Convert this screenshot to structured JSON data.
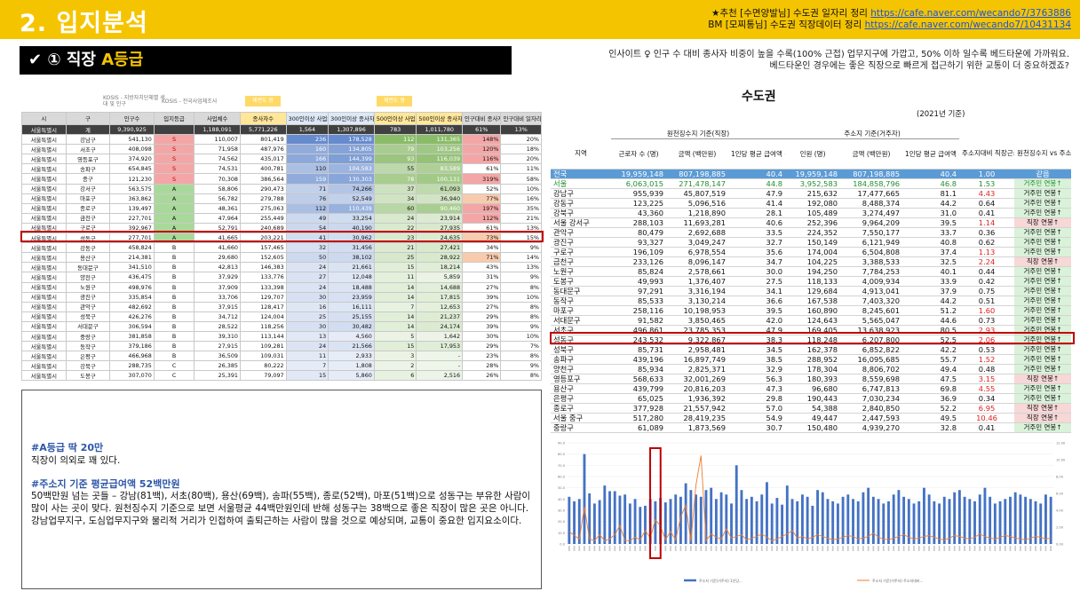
{
  "header": {
    "title": "2. 입지분석",
    "ref1_text": "★추천 [수면양발님] 수도권 일자리 정리 ",
    "ref1_link": "https://cafe.naver.com/wecando7/3763886",
    "ref2_text": "BM [모찌통님] 수도권 직장데이터 정리 ",
    "ref2_link": "https://cafe.naver.com/wecando7/10431134"
  },
  "subtitle": {
    "prefix": "✔ ① 직장 ",
    "grade": "A등급"
  },
  "insight": {
    "line1": "인사이트 ♀  인구 수 대비 종사자 비중이 높을 수록(100% 근접) 업무지구에 가깝고, 50% 이하 일수록 베드타운에 가까워요.",
    "line2": "베드타운인 경우에는 좋은 직장으로 빠르게 접근하기 위한 교통이 더 중요하겠죠?"
  },
  "left_table": {
    "notes": [
      "KOSIS - 지방자치단체별 세대 및 인구",
      "KOSIS - 전국사업체조사"
    ],
    "tags": [
      "제변도 왕",
      "제변도 왕"
    ],
    "headers": [
      "시",
      "구",
      "인구수",
      "입지등급",
      "사업체수",
      "종사자수",
      "300인이상 사업체수",
      "300인이상 종사자수",
      "500인이상 사업체수",
      "500인이상 종사자수",
      "인구대비 종사자 비율",
      "인구대비 일자리 비율"
    ],
    "total": [
      "서울특별시",
      "계",
      "9,390,925",
      "",
      "1,188,091",
      "5,771,226",
      "1,564",
      "1,307,896",
      "783",
      "1,011,780",
      "61%",
      "13%"
    ],
    "rows": [
      [
        "서울특별시",
        "강남구",
        "541,130",
        "S",
        "110,007",
        "801,419",
        "236",
        "178,528",
        "112",
        "131,365",
        "148%",
        "20%"
      ],
      [
        "서울특별시",
        "서초구",
        "408,098",
        "S",
        "71,958",
        "487,976",
        "160",
        "134,805",
        "79",
        "103,256",
        "120%",
        "18%"
      ],
      [
        "서울특별시",
        "영등포구",
        "374,920",
        "S",
        "74,562",
        "435,017",
        "166",
        "144,399",
        "93",
        "116,039",
        "116%",
        "20%"
      ],
      [
        "서울특별시",
        "송파구",
        "654,845",
        "S",
        "74,531",
        "400,781",
        "110",
        "104,583",
        "55",
        "83,589",
        "61%",
        "11%"
      ],
      [
        "서울특별시",
        "종구",
        "121,230",
        "S",
        "70,308",
        "386,564",
        "159",
        "130,303",
        "78",
        "100,131",
        "319%",
        "58%"
      ],
      [
        "서울특별시",
        "강서구",
        "563,575",
        "A",
        "58,806",
        "290,473",
        "71",
        "74,266",
        "37",
        "61,093",
        "52%",
        "10%"
      ],
      [
        "서울특별시",
        "마포구",
        "363,862",
        "A",
        "56,782",
        "279,788",
        "76",
        "52,549",
        "34",
        "36,940",
        "77%",
        "16%"
      ],
      [
        "서울특별시",
        "종로구",
        "139,497",
        "A",
        "48,361",
        "275,063",
        "112",
        "110,439",
        "60",
        "90,460",
        "197%",
        "35%"
      ],
      [
        "서울특별시",
        "금천구",
        "227,701",
        "A",
        "47,964",
        "255,449",
        "49",
        "33,254",
        "24",
        "23,914",
        "112%",
        "21%"
      ],
      [
        "서울특별시",
        "구로구",
        "392,967",
        "A",
        "52,791",
        "240,689",
        "54",
        "40,190",
        "22",
        "27,935",
        "61%",
        "13%"
      ],
      [
        "서울특별시",
        "성동구",
        "277,701",
        "A",
        "41,665",
        "203,221",
        "41",
        "30,962",
        "23",
        "24,635",
        "73%",
        "15%"
      ],
      [
        "서울특별시",
        "강동구",
        "458,824",
        "B",
        "41,660",
        "157,465",
        "32",
        "31,456",
        "21",
        "27,421",
        "34%",
        "9%"
      ],
      [
        "서울특별시",
        "용산구",
        "214,381",
        "B",
        "29,680",
        "152,605",
        "50",
        "38,102",
        "25",
        "28,922",
        "71%",
        "14%"
      ],
      [
        "서울특별시",
        "동대문구",
        "341,510",
        "B",
        "42,813",
        "146,383",
        "24",
        "21,661",
        "15",
        "18,214",
        "43%",
        "13%"
      ],
      [
        "서울특별시",
        "양천구",
        "436,475",
        "B",
        "37,929",
        "133,776",
        "27",
        "12,048",
        "11",
        "5,859",
        "31%",
        "9%"
      ],
      [
        "서울특별시",
        "노원구",
        "498,976",
        "B",
        "37,909",
        "133,398",
        "24",
        "18,488",
        "14",
        "14,688",
        "27%",
        "8%"
      ],
      [
        "서울특별시",
        "광진구",
        "335,854",
        "B",
        "33,706",
        "129,707",
        "30",
        "23,959",
        "14",
        "17,815",
        "39%",
        "10%"
      ],
      [
        "서울특별시",
        "관악구",
        "482,692",
        "B",
        "37,915",
        "128,417",
        "16",
        "16,111",
        "7",
        "12,653",
        "27%",
        "8%"
      ],
      [
        "서울특별시",
        "성북구",
        "426,276",
        "B",
        "34,712",
        "124,004",
        "25",
        "25,155",
        "14",
        "21,237",
        "29%",
        "8%"
      ],
      [
        "서울특별시",
        "서대문구",
        "306,594",
        "B",
        "28,522",
        "118,256",
        "30",
        "30,482",
        "14",
        "24,174",
        "39%",
        "9%"
      ],
      [
        "서울특별시",
        "중랑구",
        "381,858",
        "B",
        "39,310",
        "113,144",
        "13",
        "4,560",
        "5",
        "1,642",
        "30%",
        "10%"
      ],
      [
        "서울특별시",
        "동작구",
        "379,186",
        "B",
        "27,915",
        "109,281",
        "24",
        "21,566",
        "15",
        "17,953",
        "29%",
        "7%"
      ],
      [
        "서울특별시",
        "은평구",
        "466,968",
        "B",
        "36,509",
        "109,031",
        "11",
        "2,933",
        "3",
        "-",
        "23%",
        "8%"
      ],
      [
        "서울특별시",
        "강북구",
        "288,735",
        "C",
        "26,385",
        "80,222",
        "7",
        "1,808",
        "2",
        "-",
        "28%",
        "9%"
      ],
      [
        "서울특별시",
        "도봉구",
        "307,070",
        "C",
        "25,391",
        "79,097",
        "15",
        "5,860",
        "6",
        "2,516",
        "26%",
        "8%"
      ]
    ]
  },
  "text_box": {
    "h1": "#A등급 딱 20만",
    "p1": "직장이 의외로 꽤 있다.",
    "h2": "#주소지 기준 평균급여액 52백만원",
    "p2": "50백만원 넘는 곳들 – 강남(81백), 서초(80백), 용산(69백), 송파(55백), 종로(52백), 마포(51백)으로 성동구는 부유한 사람이 많이 사는 곳이 맞다. 원천징수지 기준으로 보면 서울평균 44백만원인데 반해 성동구는 38백으로 좋은 직장이 많은 곳은 아니다. 강남업무지구, 도심업무지구와 물리적 거리가 인접하여 출퇴근하는 사람이 많을 것으로 예상되며, 교통이 중요한 입지요소이다."
  },
  "right_table": {
    "title": "수도권",
    "year": "(2021년 기준)",
    "group1": "원천징수지 기준(직장)",
    "group2": "주소지 기준(거주자)",
    "headers": [
      "지역",
      "근로자 수 (명)",
      "금액 (백만원)",
      "1인당 평균 급여액 (백만원)",
      "인원 (명)",
      "금액 (백만원)",
      "1인당 평균 급여액 (백만원)",
      "주소지대비 직장근로자수",
      "원천징수지 vs 주소지"
    ],
    "rows": [
      [
        "전국",
        "19,959,148",
        "807,198,885",
        "40.4",
        "19,959,148",
        "807,198,885",
        "40.4",
        "1.00",
        "같음"
      ],
      [
        "서울",
        "6,063,015",
        "271,478,147",
        "44.8",
        "3,952,583",
        "184,858,796",
        "46.8",
        "1.53",
        "거주민 연봉↑"
      ],
      [
        "강남구",
        "955,939",
        "45,807,519",
        "47.9",
        "215,632",
        "17,477,665",
        "81.1",
        "4.43",
        "거주민 연봉↑"
      ],
      [
        "강동구",
        "123,225",
        "5,096,516",
        "41.4",
        "192,080",
        "8,488,374",
        "44.2",
        "0.64",
        "거주민 연봉↑"
      ],
      [
        "강북구",
        "43,360",
        "1,218,890",
        "28.1",
        "105,489",
        "3,274,497",
        "31.0",
        "0.41",
        "거주민 연봉↑"
      ],
      [
        "서울 강서구",
        "288,103",
        "11,693,281",
        "40.6",
        "252,396",
        "9,964,209",
        "39.5",
        "1.14",
        "직장 연봉↑"
      ],
      [
        "관악구",
        "80,479",
        "2,692,688",
        "33.5",
        "224,352",
        "7,550,177",
        "33.7",
        "0.36",
        "거주민 연봉↑"
      ],
      [
        "광진구",
        "93,327",
        "3,049,247",
        "32.7",
        "150,149",
        "6,121,949",
        "40.8",
        "0.62",
        "거주민 연봉↑"
      ],
      [
        "구로구",
        "196,109",
        "6,978,554",
        "35.6",
        "174,004",
        "6,504,808",
        "37.4",
        "1.13",
        "거주민 연봉↑"
      ],
      [
        "금천구",
        "233,126",
        "8,096,147",
        "34.7",
        "104,225",
        "3,388,533",
        "32.5",
        "2.24",
        "직장 연봉↑"
      ],
      [
        "노원구",
        "85,824",
        "2,578,661",
        "30.0",
        "194,250",
        "7,784,253",
        "40.1",
        "0.44",
        "거주민 연봉↑"
      ],
      [
        "도봉구",
        "49,993",
        "1,376,407",
        "27.5",
        "118,133",
        "4,009,934",
        "33.9",
        "0.42",
        "거주민 연봉↑"
      ],
      [
        "동대문구",
        "97,291",
        "3,316,194",
        "34.1",
        "129,684",
        "4,913,041",
        "37.9",
        "0.75",
        "거주민 연봉↑"
      ],
      [
        "동작구",
        "85,533",
        "3,130,214",
        "36.6",
        "167,538",
        "7,403,320",
        "44.2",
        "0.51",
        "거주민 연봉↑"
      ],
      [
        "마포구",
        "258,116",
        "10,198,953",
        "39.5",
        "160,890",
        "8,245,601",
        "51.2",
        "1.60",
        "거주민 연봉↑"
      ],
      [
        "서대문구",
        "91,582",
        "3,850,465",
        "42.0",
        "124,643",
        "5,565,047",
        "44.6",
        "0.73",
        "거주민 연봉↑"
      ],
      [
        "서초구",
        "496,861",
        "23,785,353",
        "47.9",
        "169,405",
        "13,638,923",
        "80.5",
        "2.93",
        "거주민 연봉↑"
      ],
      [
        "성동구",
        "243,532",
        "9,322,867",
        "38.3",
        "118,248",
        "6,207,800",
        "52.5",
        "2.06",
        "거주민 연봉↑"
      ],
      [
        "성북구",
        "85,731",
        "2,958,481",
        "34.5",
        "162,378",
        "6,852,822",
        "42.2",
        "0.53",
        "거주민 연봉↑"
      ],
      [
        "송파구",
        "439,196",
        "16,897,749",
        "38.5",
        "288,952",
        "16,095,685",
        "55.7",
        "1.52",
        "거주민 연봉↑"
      ],
      [
        "양천구",
        "85,934",
        "2,825,371",
        "32.9",
        "178,304",
        "8,806,702",
        "49.4",
        "0.48",
        "거주민 연봉↑"
      ],
      [
        "영등포구",
        "568,633",
        "32,001,269",
        "56.3",
        "180,393",
        "8,559,698",
        "47.5",
        "3.15",
        "직장 연봉↑"
      ],
      [
        "용산구",
        "439,799",
        "20,816,203",
        "47.3",
        "96,680",
        "6,747,813",
        "69.8",
        "4.55",
        "거주민 연봉↑"
      ],
      [
        "은평구",
        "65,025",
        "1,936,392",
        "29.8",
        "190,443",
        "7,030,234",
        "36.9",
        "0.34",
        "거주민 연봉↑"
      ],
      [
        "종로구",
        "377,928",
        "21,557,942",
        "57.0",
        "54,388",
        "2,840,850",
        "52.2",
        "6.95",
        "직장 연봉↑"
      ],
      [
        "서울 중구",
        "517,280",
        "28,419,235",
        "54.9",
        "49,447",
        "2,447,593",
        "49.5",
        "10.46",
        "직장 연봉↑"
      ],
      [
        "중랑구",
        "61,089",
        "1,873,569",
        "30.7",
        "150,480",
        "4,939,270",
        "32.8",
        "0.41",
        "거주민 연봉↑"
      ]
    ]
  },
  "chart_data": {
    "type": "bar",
    "series": [
      {
        "name": "주소지 기준(거주자) 1인당...",
        "type": "bar",
        "values": [
          42,
          38,
          40,
          80,
          45,
          36,
          39,
          52,
          47,
          47,
          43,
          44,
          36,
          40,
          33,
          34,
          40,
          38,
          41,
          37,
          40,
          44,
          42,
          54,
          48,
          44,
          42,
          48,
          50,
          40,
          46,
          44,
          36,
          70,
          48,
          40,
          42,
          38,
          44,
          55,
          36,
          41,
          35,
          52,
          40,
          38,
          44,
          42,
          34,
          48,
          46,
          40,
          38,
          36,
          42,
          44,
          40,
          38,
          46,
          50,
          42,
          40,
          36,
          38,
          44,
          48,
          42,
          40,
          36,
          38,
          50,
          44,
          38,
          36,
          42,
          40,
          46,
          48,
          42,
          40,
          38,
          44,
          50,
          42,
          36,
          38,
          40,
          42,
          46,
          44,
          42,
          40,
          38,
          36,
          44,
          42
        ]
      },
      {
        "name": "주소지 기준(거주자) 주소지대비...",
        "type": "line",
        "values": [
          1.5,
          1,
          0.6,
          4.4,
          0.6,
          0.4,
          1.1,
          0.4,
          0.6,
          1.1,
          2.2,
          0.4,
          0.4,
          0.8,
          0.5,
          1.6,
          0.7,
          2.9,
          2.1,
          0.5,
          1.5,
          0.5,
          3.2,
          4.6,
          0.3,
          7,
          10.5,
          0.4,
          1.2,
          0.8,
          0.6,
          1.8,
          0.7,
          0.9,
          1.1,
          0.5,
          0.7,
          0.9,
          1.2,
          0.8,
          0.4,
          0.6,
          0.9,
          1.2,
          1.6,
          0.7,
          0.9,
          0.6,
          0.8,
          1.1,
          0.9,
          0.7,
          0.5,
          0.6,
          0.8,
          1,
          0.9,
          0.6,
          0.7,
          0.9,
          1.3,
          0.8,
          0.6,
          0.5,
          0.7,
          0.9,
          1.1,
          0.8,
          0.6,
          0.7,
          0.9,
          1,
          0.8,
          0.6,
          0.5,
          0.7,
          1,
          0.9,
          0.7,
          0.6,
          0.8,
          1.2,
          0.9,
          0.7,
          0.6,
          0.8,
          1,
          0.9,
          0.7,
          0.6,
          0.5,
          0.7,
          0.9,
          0.8,
          0.6,
          0.7
        ]
      }
    ],
    "ylim": [
      0,
      90
    ],
    "ylim2": [
      0,
      12
    ],
    "yticks": [
      "90.0",
      "80.0",
      "70.0",
      "60.0",
      "50.0",
      "40.0",
      "30.0",
      "20.0",
      "10.0",
      "0.0"
    ],
    "y2ticks": [
      "12.00",
      "10.00",
      "8.00",
      "6.00",
      "4.00",
      "2.00",
      "0.00"
    ],
    "highlight_index": 17
  },
  "colors": {
    "accent": "#f5c400",
    "highlight": "#c00000",
    "bar": "#4472c4",
    "line": "#ed7d31",
    "green_text": "#1f8f2c",
    "red_text": "#e02020"
  }
}
